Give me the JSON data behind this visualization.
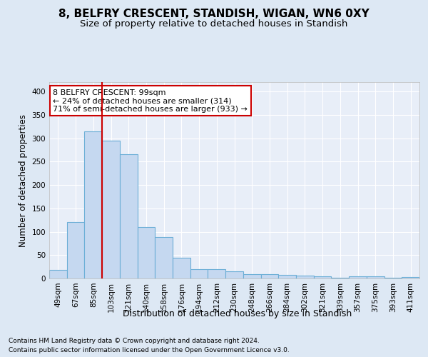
{
  "title": "8, BELFRY CRESCENT, STANDISH, WIGAN, WN6 0XY",
  "subtitle": "Size of property relative to detached houses in Standish",
  "xlabel": "Distribution of detached houses by size in Standish",
  "ylabel": "Number of detached properties",
  "footer1": "Contains HM Land Registry data © Crown copyright and database right 2024.",
  "footer2": "Contains public sector information licensed under the Open Government Licence v3.0.",
  "categories": [
    "49sqm",
    "67sqm",
    "85sqm",
    "103sqm",
    "121sqm",
    "140sqm",
    "158sqm",
    "176sqm",
    "194sqm",
    "212sqm",
    "230sqm",
    "248sqm",
    "266sqm",
    "284sqm",
    "302sqm",
    "321sqm",
    "339sqm",
    "357sqm",
    "375sqm",
    "393sqm",
    "411sqm"
  ],
  "values": [
    18,
    120,
    315,
    295,
    265,
    110,
    88,
    45,
    20,
    20,
    15,
    9,
    9,
    7,
    6,
    4,
    1,
    5,
    5,
    2,
    3
  ],
  "bar_color": "#c5d8f0",
  "bar_edge_color": "#6baed6",
  "bar_linewidth": 0.8,
  "vline_x": 2.5,
  "vline_color": "#cc0000",
  "annotation_text": "8 BELFRY CRESCENT: 99sqm\n← 24% of detached houses are smaller (314)\n71% of semi-detached houses are larger (933) →",
  "annotation_box_color": "#ffffff",
  "annotation_box_edge": "#cc0000",
  "ylim": [
    0,
    420
  ],
  "yticks": [
    0,
    50,
    100,
    150,
    200,
    250,
    300,
    350,
    400
  ],
  "bg_color": "#dde8f4",
  "axes_bg_color": "#e8eef8",
  "grid_color": "#ffffff",
  "title_fontsize": 11,
  "subtitle_fontsize": 9.5,
  "ylabel_fontsize": 8.5,
  "xlabel_fontsize": 9,
  "tick_fontsize": 7.5,
  "footer_fontsize": 6.5,
  "ann_fontsize": 8
}
